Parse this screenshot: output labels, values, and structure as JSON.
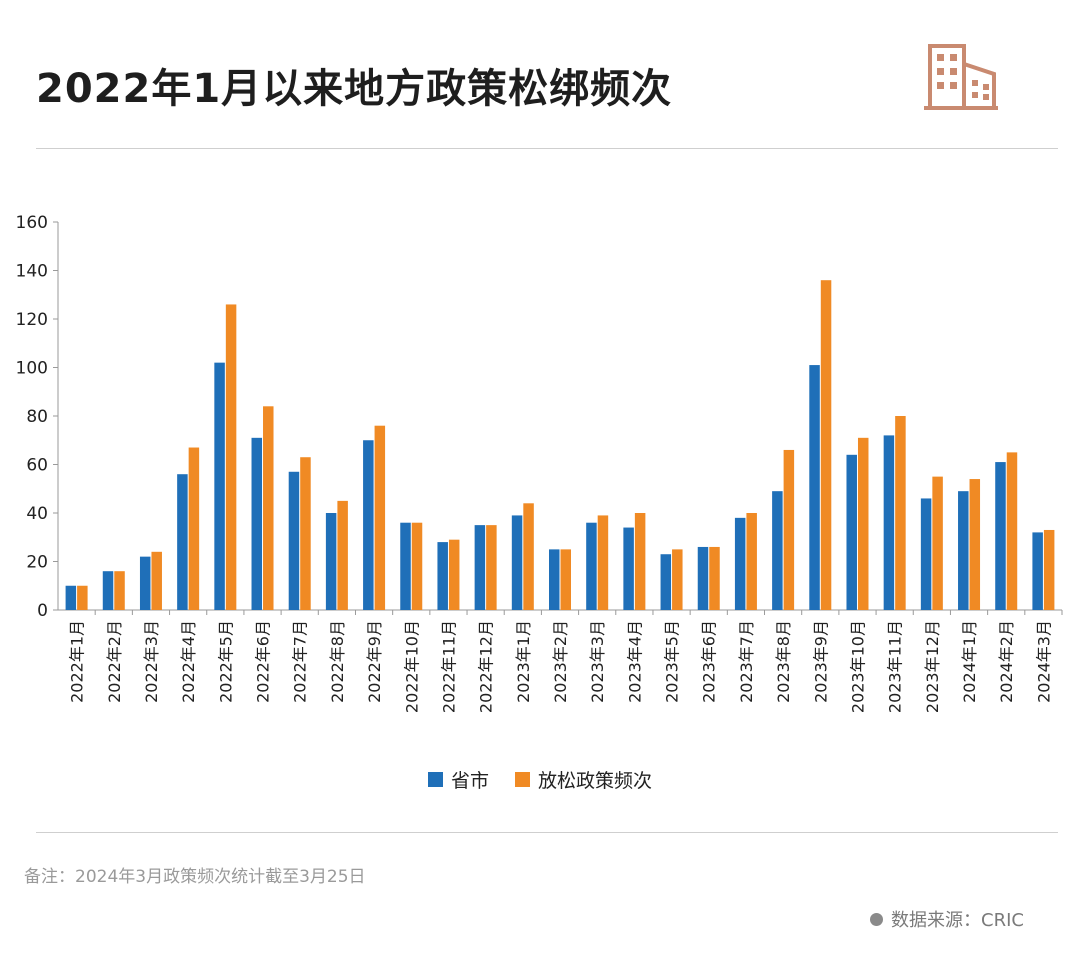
{
  "header": {
    "title": "2022年1月以来地方政策松绑频次",
    "logo_icon": "building-icon",
    "logo_color": "#c98a70"
  },
  "footer": {
    "note": "备注：2024年3月政策频次统计截至3月25日",
    "source": "数据来源：CRIC"
  },
  "colors": {
    "series_1": "#1f6fb8",
    "series_2": "#f08a24"
  },
  "chart_data": {
    "type": "bar",
    "categories": [
      "2022年1月",
      "2022年2月",
      "2022年3月",
      "2022年4月",
      "2022年5月",
      "2022年6月",
      "2022年7月",
      "2022年8月",
      "2022年9月",
      "2022年10月",
      "2022年11月",
      "2022年12月",
      "2023年1月",
      "2023年2月",
      "2023年3月",
      "2023年4月",
      "2023年5月",
      "2023年6月",
      "2023年7月",
      "2023年8月",
      "2023年9月",
      "2023年10月",
      "2023年11月",
      "2023年12月",
      "2024年1月",
      "2024年2月",
      "2024年3月"
    ],
    "series": [
      {
        "name": "省市",
        "values": [
          10,
          16,
          22,
          56,
          102,
          71,
          57,
          40,
          70,
          36,
          28,
          35,
          39,
          25,
          36,
          34,
          23,
          26,
          38,
          49,
          101,
          64,
          72,
          46,
          49,
          61,
          32
        ]
      },
      {
        "name": "放松政策频次",
        "values": [
          10,
          16,
          24,
          67,
          126,
          84,
          63,
          45,
          76,
          36,
          29,
          35,
          44,
          25,
          39,
          40,
          25,
          26,
          40,
          66,
          136,
          71,
          80,
          55,
          54,
          65,
          33
        ]
      }
    ],
    "ylim": [
      0,
      160
    ],
    "yticks": [
      "0",
      "20",
      "40",
      "60",
      "80",
      "100",
      "120",
      "140",
      "160"
    ],
    "legend_position": "bottom"
  }
}
